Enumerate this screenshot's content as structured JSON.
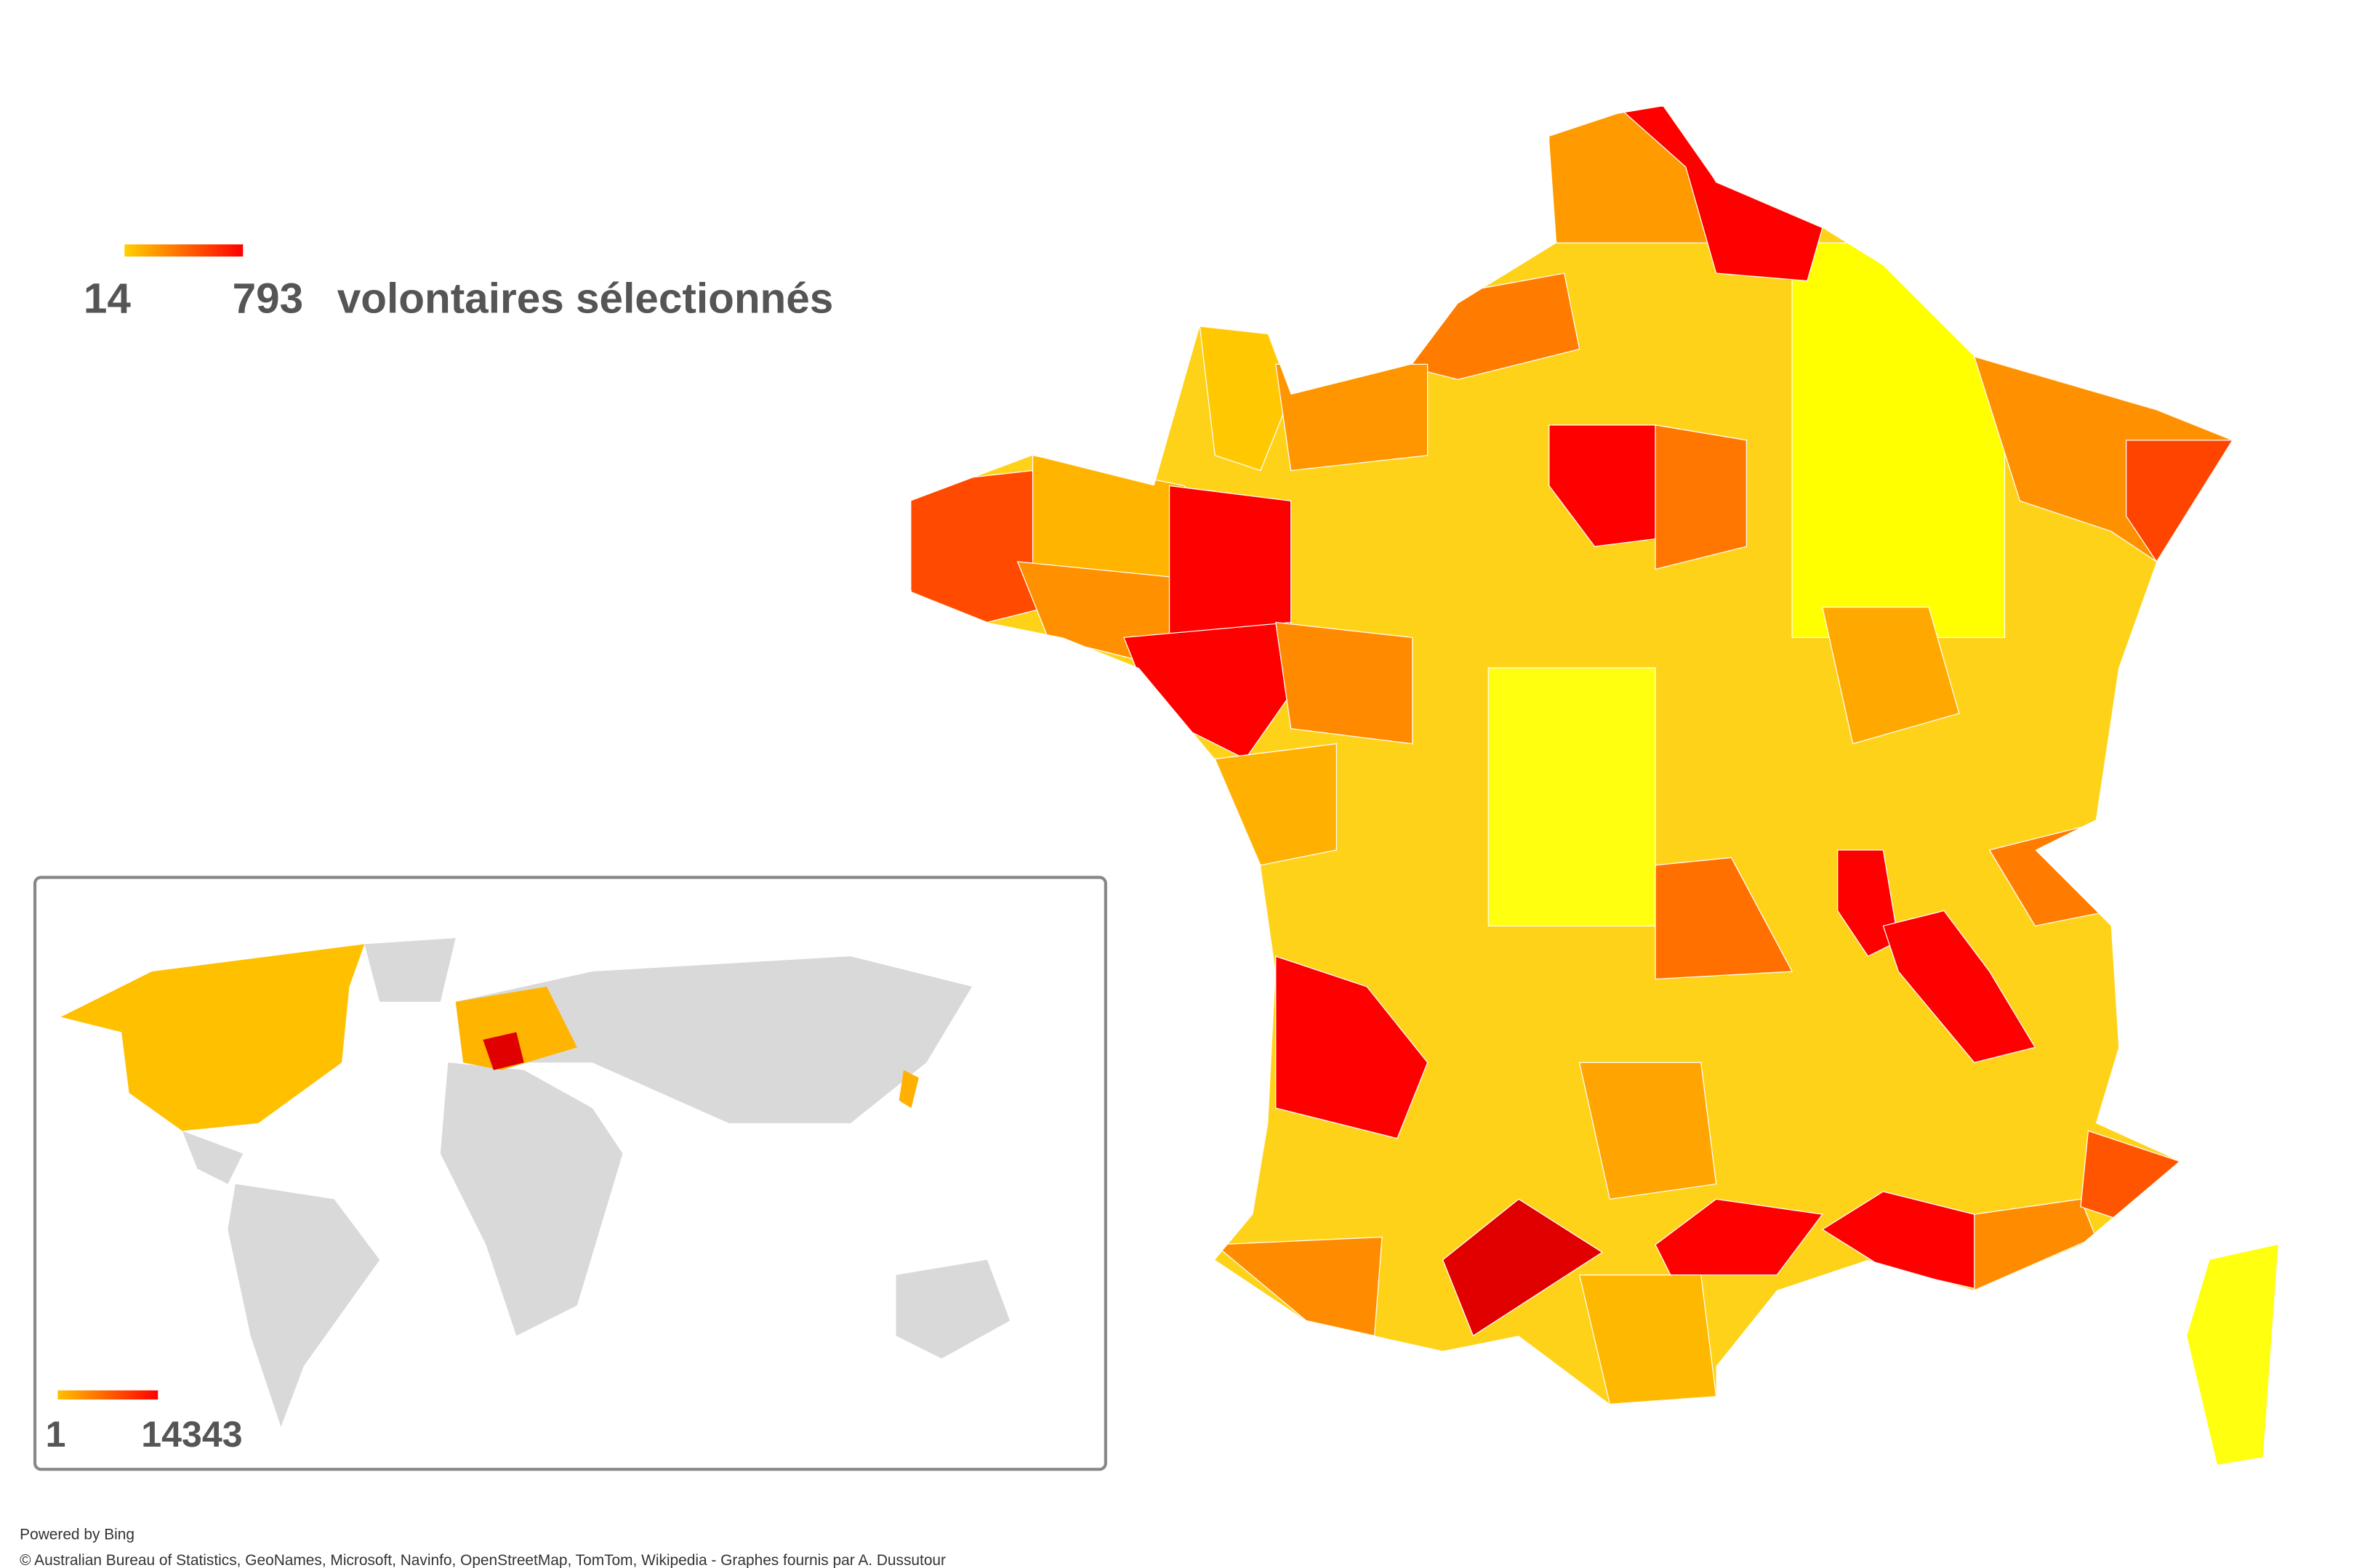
{
  "legend": {
    "min": 14,
    "max": 793,
    "label": "volontaires sélectionnés",
    "colors": [
      "#ffd000",
      "#ff0000"
    ]
  },
  "inset": {
    "legend": {
      "min": 1,
      "max": 14343,
      "colors": [
        "#ffc000",
        "#ff0000"
      ]
    }
  },
  "footer": {
    "powered": "Powered by Bing",
    "credits": "© Australian  Bureau of Statistics, GeoNames, Microsoft, Navinfo, OpenStreetMap, TomTom, Wikipedia  - Graphes fournis par A. Dussutour"
  }
}
